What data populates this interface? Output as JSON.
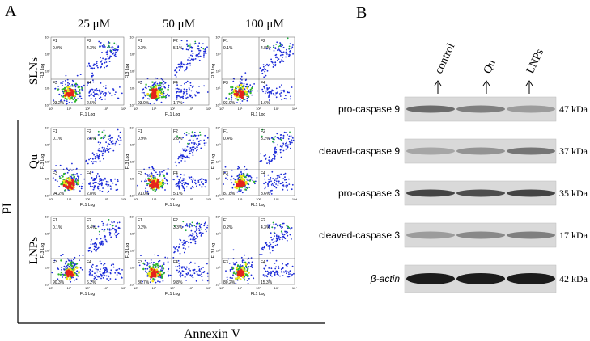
{
  "panel_a": {
    "label": "A",
    "columns": [
      "25 μM",
      "50 μM",
      "100 μM"
    ],
    "rows": [
      "SLNs",
      "Qu",
      "LNPs"
    ],
    "y_axis_label": "PI",
    "x_axis_label": "Annexin V",
    "plot_x_label": "FL1 Log",
    "plot_y_label": "FL3 Log",
    "quadrant_names": [
      "F1",
      "F2",
      "F3",
      "F4"
    ],
    "ticks": [
      "10⁰",
      "10¹",
      "10²",
      "10³",
      "10⁴"
    ],
    "plots": [
      [
        {
          "quadrants": [
            "0.0%",
            "4.3%",
            "93.2%",
            "2.5%"
          ]
        },
        {
          "quadrants": [
            "0.2%",
            "5.1%",
            "93.0%",
            "1.7%"
          ]
        },
        {
          "quadrants": [
            "0.1%",
            "4.8%",
            "93.9%",
            "1.6%"
          ]
        }
      ],
      [
        {
          "quadrants": [
            "0.1%",
            "2.8%",
            "94.2%",
            "2.8%"
          ]
        },
        {
          "quadrants": [
            "0.9%",
            "2.8%",
            "91.0%",
            "5.1%"
          ]
        },
        {
          "quadrants": [
            "0.4%",
            "3.2%",
            "87.8%",
            "8.6%"
          ]
        }
      ],
      [
        {
          "quadrants": [
            "0.1%",
            "3.4%",
            "90.3%",
            "6.2%"
          ]
        },
        {
          "quadrants": [
            "0.2%",
            "3.3%",
            "86.7%",
            "9.8%"
          ]
        },
        {
          "quadrants": [
            "0.2%",
            "4.3%",
            "80.2%",
            "15.3%"
          ]
        }
      ]
    ]
  },
  "panel_b": {
    "label": "B",
    "lanes": [
      "control",
      "Qu",
      "LNPs"
    ],
    "bands": [
      {
        "name": "pro-caspase 9",
        "size": "47 kDa"
      },
      {
        "name": "cleaved-caspase 9",
        "size": "37 kDa"
      },
      {
        "name": "pro-caspase 3",
        "size": "35 kDa"
      },
      {
        "name": "cleaved-caspase 3",
        "size": "17 kDa"
      },
      {
        "name": "β-actin",
        "size": "42 kDa"
      }
    ]
  }
}
